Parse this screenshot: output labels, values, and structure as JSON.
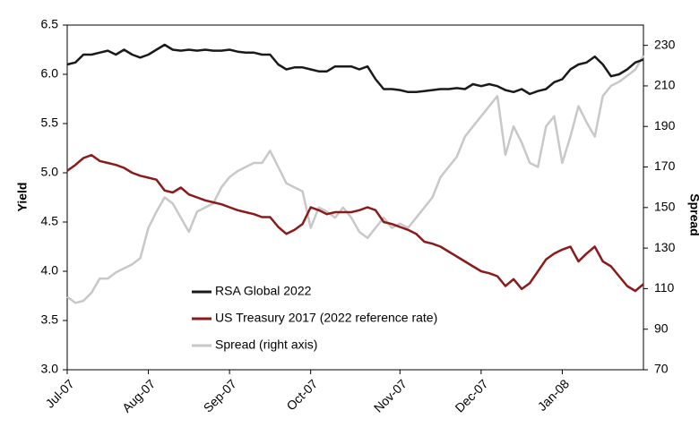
{
  "chart_data": {
    "type": "line",
    "categories": [
      "Jul-07",
      null,
      null,
      null,
      null,
      null,
      null,
      null,
      null,
      null,
      "Aug-07",
      null,
      null,
      null,
      null,
      null,
      null,
      null,
      null,
      null,
      "Sep-07",
      null,
      null,
      null,
      null,
      null,
      null,
      null,
      null,
      null,
      "Oct-07",
      null,
      null,
      null,
      null,
      null,
      null,
      null,
      null,
      null,
      null,
      "Nov-07",
      null,
      null,
      null,
      null,
      null,
      null,
      null,
      null,
      null,
      "Dec-07",
      null,
      null,
      null,
      null,
      null,
      null,
      null,
      null,
      null,
      "Jan-08",
      null,
      null,
      null,
      null,
      null,
      null,
      null,
      null,
      null,
      null
    ],
    "y_label": "Yield",
    "y2_label": "Spread",
    "ylim": [
      3.0,
      6.5
    ],
    "yticks": [
      {
        "value": 3,
        "label": "3.0"
      },
      3.5,
      {
        "value": 4,
        "label": "4.0"
      },
      4.5,
      {
        "value": 5,
        "label": "5.0"
      },
      5.5,
      {
        "value": 6,
        "label": "6.0"
      },
      6.5
    ],
    "y2lim": [
      70,
      240
    ],
    "y2ticks": [
      70,
      90,
      110,
      130,
      150,
      170,
      190,
      210,
      230
    ],
    "legend": "lower-left",
    "series": [
      {
        "name": "RSA Global 2022",
        "color": "#1a1a1a",
        "values": [
          6.1,
          6.12,
          6.2,
          6.2,
          6.22,
          6.24,
          6.2,
          6.25,
          6.2,
          6.17,
          6.2,
          6.25,
          6.3,
          6.25,
          6.24,
          6.25,
          6.24,
          6.25,
          6.24,
          6.24,
          6.25,
          6.23,
          6.22,
          6.22,
          6.2,
          6.2,
          6.1,
          6.05,
          6.07,
          6.07,
          6.05,
          6.03,
          6.03,
          6.08,
          6.08,
          6.08,
          6.05,
          6.08,
          5.95,
          5.85,
          5.85,
          5.84,
          5.82,
          5.82,
          5.83,
          5.84,
          5.85,
          5.85,
          5.86,
          5.85,
          5.9,
          5.88,
          5.9,
          5.88,
          5.84,
          5.82,
          5.85,
          5.8,
          5.83,
          5.85,
          5.92,
          5.95,
          6.05,
          6.1,
          6.12,
          6.18,
          6.1,
          5.98,
          6.0,
          6.05,
          6.12,
          6.15
        ]
      },
      {
        "name": "US Treasury 2017 (2022 reference rate)",
        "color": "#8b1a1a",
        "values": [
          5.02,
          5.08,
          5.15,
          5.18,
          5.12,
          5.1,
          5.08,
          5.05,
          5.0,
          4.97,
          4.95,
          4.93,
          4.82,
          4.8,
          4.85,
          4.78,
          4.75,
          4.72,
          4.7,
          4.68,
          4.65,
          4.62,
          4.6,
          4.58,
          4.55,
          4.55,
          4.45,
          4.38,
          4.42,
          4.48,
          4.65,
          4.62,
          4.58,
          4.6,
          4.6,
          4.6,
          4.62,
          4.65,
          4.62,
          4.5,
          4.48,
          4.45,
          4.42,
          4.38,
          4.3,
          4.28,
          4.25,
          4.2,
          4.15,
          4.1,
          4.05,
          4.0,
          3.98,
          3.95,
          3.85,
          3.92,
          3.82,
          3.88,
          4.0,
          4.12,
          4.18,
          4.22,
          4.25,
          4.1,
          4.18,
          4.25,
          4.1,
          4.05,
          3.95,
          3.85,
          3.8,
          3.87
        ]
      },
      {
        "name": "Spread (right axis)",
        "color": "#c8c8c8",
        "axis": "y2",
        "values": [
          106,
          103,
          104,
          108,
          115,
          115,
          118,
          120,
          122,
          125,
          140,
          148,
          155,
          152,
          145,
          138,
          148,
          150,
          152,
          160,
          165,
          168,
          170,
          172,
          172,
          178,
          170,
          162,
          160,
          158,
          140,
          150,
          148,
          145,
          150,
          145,
          138,
          135,
          140,
          145,
          140,
          142,
          140,
          145,
          150,
          155,
          165,
          170,
          175,
          185,
          190,
          195,
          200,
          205,
          176,
          190,
          182,
          172,
          170,
          190,
          195,
          172,
          185,
          200,
          192,
          185,
          205,
          210,
          212,
          215,
          218,
          225
        ]
      }
    ]
  }
}
